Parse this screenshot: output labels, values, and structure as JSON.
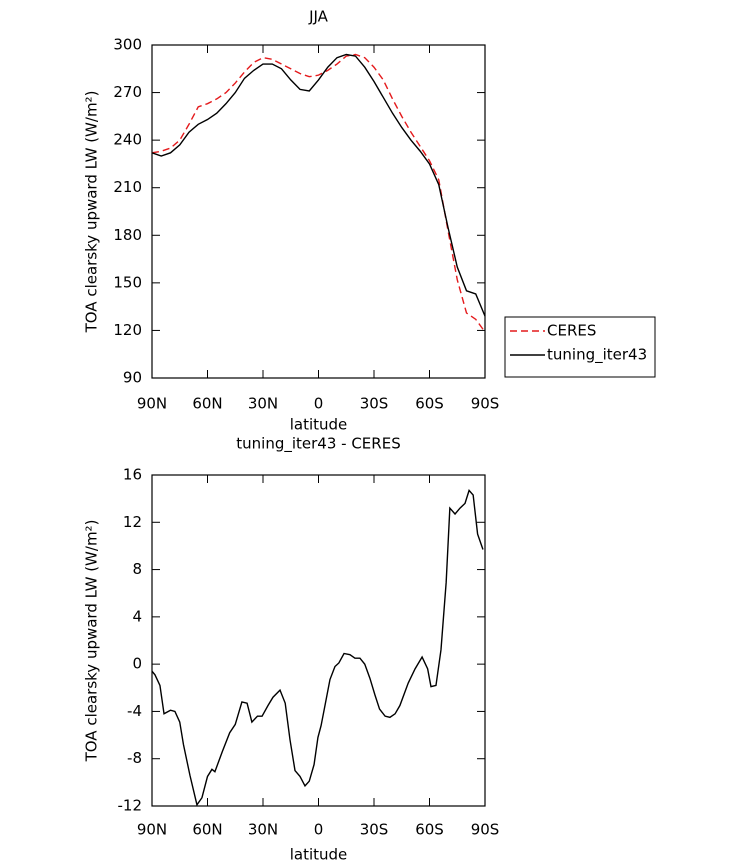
{
  "chart_data": [
    {
      "type": "line",
      "title": "JJA",
      "xlabel": "latitude",
      "ylabel": "TOA clearsky upward LW (W/m²)",
      "x": [
        90,
        85,
        80,
        75,
        70,
        65,
        60,
        55,
        50,
        45,
        40,
        35,
        30,
        25,
        20,
        15,
        10,
        5,
        0,
        -5,
        -10,
        -15,
        -20,
        -25,
        -30,
        -35,
        -40,
        -45,
        -50,
        -55,
        -60,
        -65,
        -70,
        -75,
        -80,
        -85,
        -90
      ],
      "series": [
        {
          "name": "CERES",
          "color": "#e41a1c",
          "dashed": true,
          "values": [
            232,
            233,
            235,
            240,
            250,
            261,
            263,
            266,
            270,
            276,
            283,
            289,
            292,
            291,
            288,
            285,
            282,
            280,
            281,
            284,
            288,
            293,
            294,
            292,
            286,
            278,
            266,
            255,
            245,
            236,
            227,
            215,
            183,
            152,
            131,
            127,
            119
          ]
        },
        {
          "name": "tuning_iter43",
          "color": "#000000",
          "dashed": false,
          "values": [
            232,
            230,
            232,
            237,
            245,
            250,
            253,
            257,
            263,
            270,
            279,
            284,
            288,
            288,
            285,
            278,
            272,
            271,
            278,
            286,
            292,
            294,
            293,
            286,
            277,
            267,
            257,
            248,
            240,
            233,
            225,
            212,
            185,
            160,
            145,
            143,
            129
          ]
        }
      ],
      "xlim": [
        90,
        -90
      ],
      "xticks": [
        {
          "value": 90,
          "label": "90N"
        },
        {
          "value": 60,
          "label": "60N"
        },
        {
          "value": 30,
          "label": "30N"
        },
        0,
        {
          "value": -30,
          "label": "30S"
        },
        {
          "value": -60,
          "label": "60S"
        },
        {
          "value": -90,
          "label": "90S"
        }
      ],
      "ylim": [
        90,
        300
      ],
      "yticks": [
        90,
        120,
        150,
        180,
        210,
        240,
        270,
        300
      ],
      "legend": "right"
    },
    {
      "type": "line",
      "title": "tuning_iter43 - CERES",
      "xlabel": "latitude",
      "ylabel": "TOA clearsky upward LW (W/m²)",
      "x": [
        90,
        88.4,
        85.7,
        83.5,
        80,
        77.6,
        75,
        73,
        69.5,
        65.7,
        63,
        60,
        57.6,
        56,
        52,
        48,
        45,
        41.4,
        38.6,
        36,
        33,
        30.5,
        27.3,
        24.6,
        20.8,
        18,
        15.4,
        12.7,
        10,
        7.3,
        5,
        2.4,
        0.3,
        -1.4,
        -3.5,
        -6.2,
        -8.9,
        -11,
        -13.8,
        -17,
        -19.7,
        -22.4,
        -25,
        -27.8,
        -30.5,
        -33,
        -36,
        -38.6,
        -41.4,
        -44,
        -48.5,
        -52.2,
        -56,
        -59,
        -60.8,
        -63.5,
        -66.2,
        -69,
        -71,
        -73.8,
        -76.5,
        -79.2,
        -81.4,
        -83.6,
        -86,
        -88.9
      ],
      "series": [
        {
          "name": "tuning_iter43 - CERES",
          "color": "#000000",
          "dashed": false,
          "values": [
            -0.6,
            -0.9,
            -1.8,
            -4.2,
            -3.9,
            -4,
            -4.9,
            -6.8,
            -9.4,
            -11.9,
            -11.3,
            -9.5,
            -8.9,
            -9.1,
            -7.4,
            -5.8,
            -5.1,
            -3.2,
            -3.3,
            -4.9,
            -4.4,
            -4.4,
            -3.5,
            -2.8,
            -2.2,
            -3.3,
            -6.4,
            -9,
            -9.5,
            -10.3,
            -9.9,
            -8.5,
            -6.2,
            -5.2,
            -3.5,
            -1.3,
            -0.2,
            0.1,
            0.9,
            0.8,
            0.5,
            0.5,
            0,
            -1.2,
            -2.6,
            -3.8,
            -4.4,
            -4.5,
            -4.2,
            -3.5,
            -1.6,
            -0.4,
            0.6,
            -0.4,
            -1.9,
            -1.8,
            1.2,
            6.9,
            13.2,
            12.7,
            13.2,
            13.6,
            14.7,
            14.3,
            11,
            9.7
          ]
        }
      ],
      "xlim": [
        90,
        -90
      ],
      "xticks": [
        {
          "value": 90,
          "label": "90N"
        },
        {
          "value": 60,
          "label": "60N"
        },
        {
          "value": 30,
          "label": "30N"
        },
        0,
        {
          "value": -30,
          "label": "30S"
        },
        {
          "value": -60,
          "label": "60S"
        },
        {
          "value": -90,
          "label": "90S"
        }
      ],
      "ylim": [
        -12,
        16
      ],
      "yticks": [
        -12,
        -8,
        -4,
        0,
        4,
        8,
        12,
        16
      ]
    }
  ]
}
